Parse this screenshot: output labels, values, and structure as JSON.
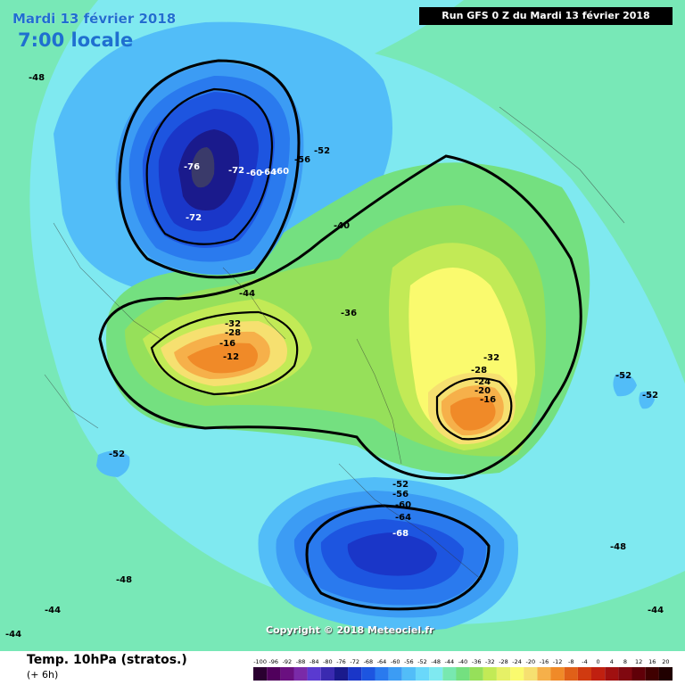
{
  "header": {
    "date": "Mardi 13 février 2018",
    "time": "7:00 locale",
    "run": "Run GFS 0 Z du Mardi 13 février 2018"
  },
  "map": {
    "copyright": "Copyright © 2018 Meteociel.fr",
    "contour_labels": [
      "-48",
      "-76",
      "-72",
      "-60",
      "-64",
      "-60",
      "-56",
      "-52",
      "-72",
      "-40",
      "-36",
      "-44",
      "-32",
      "-28",
      "-16",
      "-12",
      "-32",
      "-28",
      "-24",
      "-20",
      "-16",
      "-52",
      "-52",
      "-52",
      "-52",
      "-56",
      "-60",
      "-64",
      "-68",
      "-48",
      "-48",
      "-44",
      "-44",
      "-44"
    ]
  },
  "footer": {
    "parameter": "Temp. 10hPa (stratos.)",
    "step": "(+ 6h)"
  },
  "scale": {
    "labels": [
      "-100",
      "-96",
      "-92",
      "-88",
      "-84",
      "-80",
      "-76",
      "-72",
      "-68",
      "-64",
      "-60",
      "-56",
      "-52",
      "-48",
      "-44",
      "-40",
      "-36",
      "-32",
      "-28",
      "-24",
      "-20",
      "-16",
      "-12",
      "-8",
      "-4",
      "0",
      "4",
      "8",
      "12",
      "16",
      "20"
    ],
    "colors": [
      "#2a0030",
      "#50005c",
      "#6a1080",
      "#7a2aa8",
      "#5a3ad0",
      "#3a2ab0",
      "#1a1a8c",
      "#1a36c8",
      "#1d55e0",
      "#2a7aee",
      "#3c9cf4",
      "#52bdf8",
      "#6ad8fa",
      "#7fe9f0",
      "#78e8b0",
      "#74e080",
      "#96e05a",
      "#c2ea56",
      "#e6f066",
      "#fafa6e",
      "#f6e070",
      "#f6b04a",
      "#f08a28",
      "#e06018",
      "#d03a10",
      "#c02010",
      "#a01010",
      "#800810",
      "#600008",
      "#400000",
      "#200000"
    ]
  }
}
